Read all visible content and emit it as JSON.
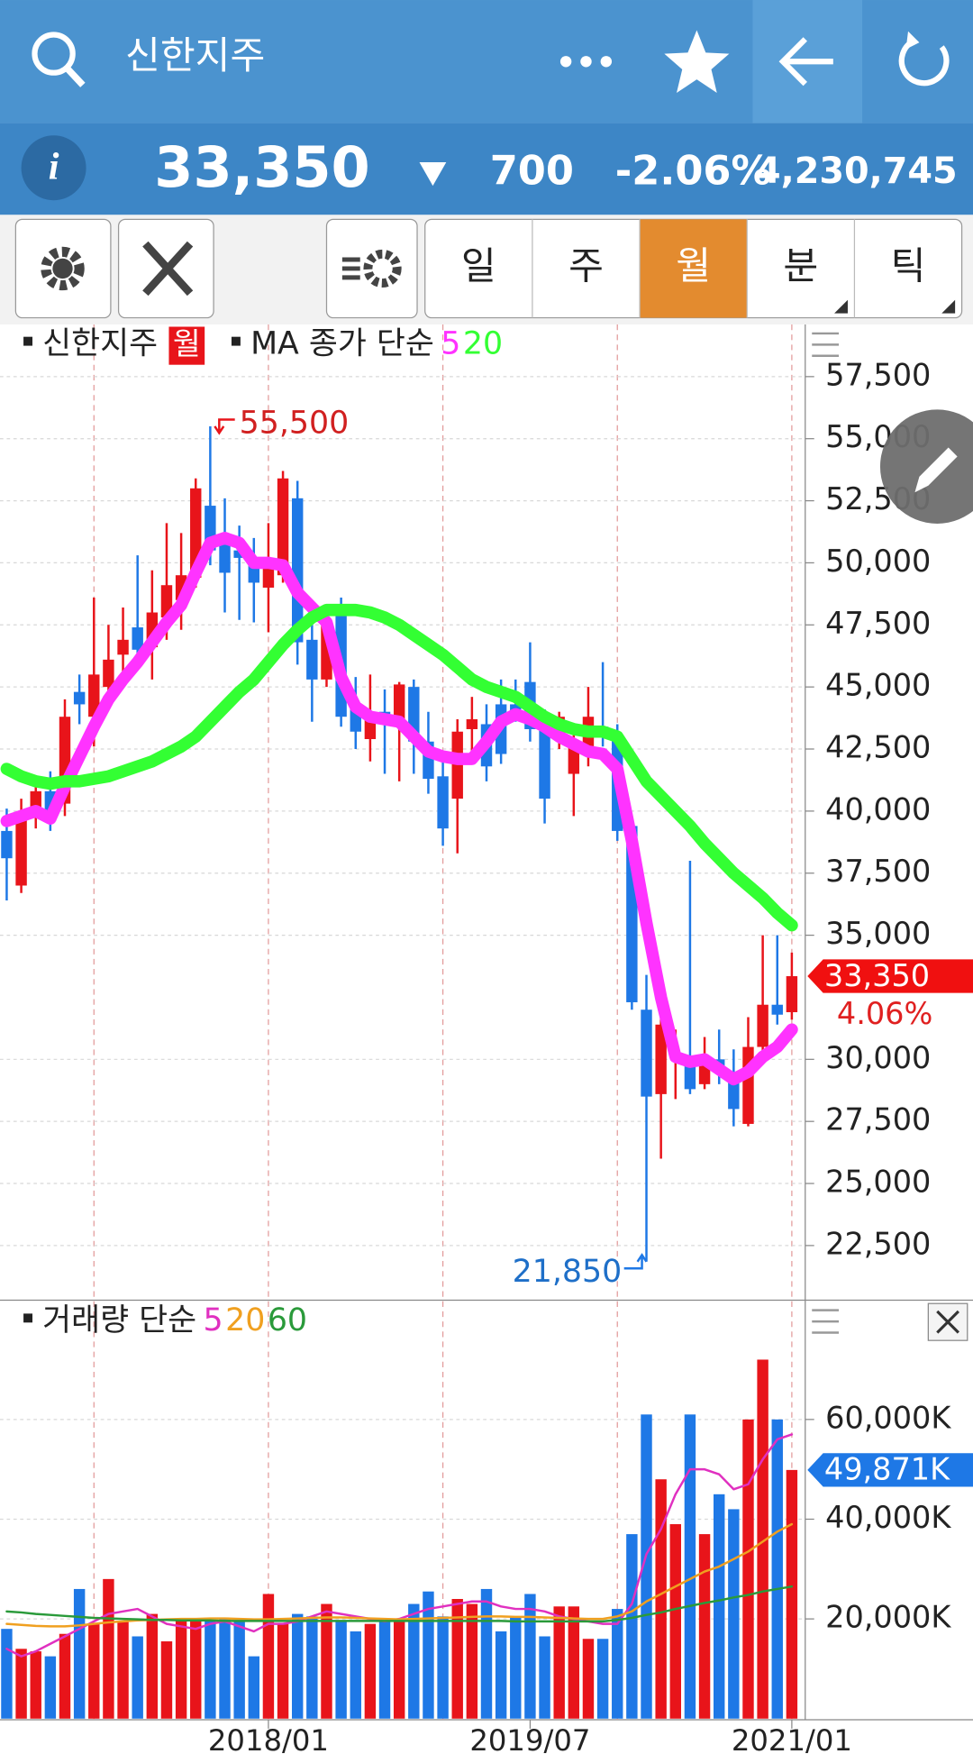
{
  "header": {
    "title": "신한지주",
    "price": "33,350",
    "change": "700",
    "change_rate": "-2.06%",
    "volume": "4,230,745"
  },
  "tabs": [
    "일",
    "주",
    "월",
    "분",
    "틱"
  ],
  "chart_data": [
    {
      "type": "candlestick",
      "title": "신한지주",
      "period": "월",
      "ma_label": "MA 종가 단순",
      "up_color": "#e8141a",
      "down_color": "#1e78e6",
      "open": [
        39200,
        37000,
        39800,
        40800,
        40300,
        44800,
        43800,
        45000,
        46300,
        47400,
        46600,
        47800,
        48500,
        49400,
        52300,
        51000,
        50500,
        50200,
        49000,
        49500,
        52600,
        46900,
        45300,
        48300,
        44100,
        42900,
        44000,
        43400,
        45000,
        42800,
        41400,
        40500,
        43300,
        43500,
        44300,
        44300,
        45200,
        43700,
        43000,
        41500,
        42300,
        43400,
        43000,
        39400,
        32000,
        28600,
        30000,
        30000,
        29000,
        30000,
        29500,
        27400,
        30500,
        32200,
        31900
      ],
      "high": [
        40100,
        40500,
        41300,
        41600,
        44500,
        45500,
        48600,
        47500,
        48200,
        50300,
        49700,
        51600,
        51200,
        53400,
        55500,
        52600,
        51500,
        51000,
        51600,
        53700,
        53300,
        47500,
        48000,
        48600,
        45400,
        45500,
        44900,
        45200,
        45300,
        44000,
        42300,
        43700,
        44600,
        44300,
        45300,
        45300,
        46800,
        44100,
        44000,
        43500,
        45000,
        46000,
        43500,
        39500,
        33400,
        32500,
        31200,
        38000,
        30900,
        31200,
        30400,
        31700,
        35000,
        35000,
        34300
      ],
      "low": [
        36400,
        36700,
        39300,
        39200,
        39800,
        43500,
        42600,
        44300,
        45400,
        45800,
        45300,
        46900,
        47300,
        49000,
        49900,
        48000,
        47700,
        47600,
        47200,
        49200,
        45900,
        43600,
        45000,
        43400,
        42500,
        42000,
        41500,
        41200,
        41500,
        40700,
        38600,
        38300,
        42400,
        41200,
        41900,
        43600,
        42800,
        39500,
        42500,
        39800,
        41800,
        42600,
        38800,
        32000,
        21850,
        26000,
        28400,
        28600,
        28800,
        29000,
        27300,
        27300,
        29800,
        31400,
        31600
      ],
      "close": [
        38100,
        39800,
        40800,
        39600,
        43800,
        44300,
        45500,
        46100,
        46900,
        46500,
        48000,
        49100,
        49500,
        53000,
        50500,
        49600,
        50200,
        49200,
        50100,
        53400,
        46800,
        45300,
        47600,
        43800,
        43200,
        43900,
        43500,
        45100,
        42800,
        41300,
        39300,
        43200,
        43700,
        41800,
        42300,
        44000,
        43300,
        40500,
        43800,
        42800,
        43800,
        43000,
        39200,
        32300,
        28500,
        31400,
        30200,
        28800,
        29800,
        29500,
        28000,
        30500,
        32200,
        31800,
        33350
      ],
      "series": [
        {
          "name": "5",
          "color": "#ff33ff",
          "values": [
            39600,
            39800,
            40000,
            39700,
            41000,
            42200,
            43400,
            44500,
            45300,
            46000,
            46800,
            47600,
            48300,
            49600,
            50800,
            51000,
            50800,
            50000,
            50000,
            49900,
            48800,
            48200,
            47600,
            45400,
            44200,
            43800,
            43700,
            43600,
            43000,
            42400,
            42200,
            42100,
            42100,
            42800,
            43600,
            43900,
            43700,
            43400,
            43000,
            42700,
            42400,
            42300,
            41700,
            38800,
            35500,
            32500,
            30100,
            29900,
            30000,
            29600,
            29200,
            29500,
            30100,
            30500,
            31200
          ]
        },
        {
          "name": "20",
          "color": "#33ff33",
          "values": [
            41700,
            41400,
            41200,
            41100,
            41200,
            41200,
            41300,
            41400,
            41600,
            41800,
            42000,
            42300,
            42600,
            43000,
            43600,
            44200,
            44800,
            45300,
            46000,
            46700,
            47300,
            47800,
            48100,
            48100,
            48100,
            48000,
            47800,
            47500,
            47100,
            46700,
            46300,
            45800,
            45300,
            45000,
            44800,
            44600,
            44200,
            43800,
            43500,
            43300,
            43200,
            43200,
            43000,
            42100,
            41200,
            40600,
            40000,
            39400,
            38700,
            38100,
            37500,
            37000,
            36500,
            35900,
            35400
          ]
        }
      ],
      "ylim": [
        20300,
        59600
      ],
      "yticks": [
        {
          "value": 22500,
          "label": "22,500"
        },
        {
          "value": 25000,
          "label": "25,000"
        },
        {
          "value": 27500,
          "label": "27,500"
        },
        {
          "value": 30000,
          "label": "30,000"
        },
        {
          "value": 35000,
          "label": "35,000"
        },
        {
          "value": 37500,
          "label": "37,500"
        },
        {
          "value": 40000,
          "label": "40,000"
        },
        {
          "value": 42500,
          "label": "42,500"
        },
        {
          "value": 45000,
          "label": "45,000"
        },
        {
          "value": 47500,
          "label": "47,500"
        },
        {
          "value": 50000,
          "label": "50,000"
        },
        {
          "value": 52500,
          "label": "52,500"
        },
        {
          "value": 55000,
          "label": "55,000"
        },
        {
          "value": 57500,
          "label": "57,500"
        }
      ],
      "max_label": {
        "value": 55500,
        "label": "55,500"
      },
      "min_label": {
        "value": 21850,
        "label": "21,850"
      },
      "last_label": {
        "value": 33350,
        "label": "33,350"
      },
      "last_rate": "4.06%",
      "grid": true
    },
    {
      "type": "bar",
      "title": "거래량 단순",
      "categories": [
        null,
        null,
        null,
        null,
        null,
        null,
        null,
        null,
        null,
        null,
        null,
        null,
        null,
        null,
        null,
        null,
        null,
        null,
        "2018/01",
        null,
        null,
        null,
        null,
        null,
        null,
        null,
        null,
        null,
        null,
        null,
        null,
        null,
        null,
        null,
        null,
        null,
        "2019/07",
        null,
        null,
        null,
        null,
        null,
        null,
        null,
        null,
        null,
        null,
        null,
        null,
        null,
        null,
        null,
        null,
        null,
        "2021/01"
      ],
      "values": [
        18000,
        14000,
        13500,
        12500,
        17000,
        26000,
        19000,
        28000,
        19500,
        16500,
        21000,
        15500,
        20000,
        20000,
        19500,
        20000,
        19500,
        12500,
        25000,
        19000,
        21000,
        20500,
        23000,
        19500,
        17500,
        19000,
        19500,
        19500,
        23000,
        25500,
        20500,
        24000,
        23000,
        26000,
        17500,
        20500,
        25000,
        16500,
        22500,
        22500,
        16000,
        16000,
        22000,
        37000,
        61000,
        48000,
        39000,
        61000,
        37000,
        45000,
        42000,
        60000,
        72000,
        60000,
        49871
      ],
      "series": [
        {
          "name": "5",
          "color": "#e030c0",
          "values": [
            14000,
            12500,
            13500,
            15000,
            16500,
            18000,
            19500,
            21000,
            21500,
            22000,
            20500,
            19000,
            18500,
            18000,
            19000,
            19500,
            18500,
            17500,
            19000,
            19000,
            19500,
            20500,
            21500,
            21000,
            20500,
            20000,
            19500,
            20000,
            21000,
            22000,
            22500,
            23000,
            23500,
            23500,
            22500,
            22000,
            22000,
            21500,
            20500,
            20000,
            19500,
            19000,
            19000,
            23000,
            33000,
            38000,
            45000,
            50000,
            50000,
            49000,
            46000,
            47000,
            52000,
            56000,
            57000
          ]
        },
        {
          "name": "20",
          "color": "#f0a020",
          "values": [
            19000,
            18800,
            18600,
            18500,
            18500,
            18700,
            19000,
            19300,
            19500,
            19700,
            19800,
            19900,
            20000,
            20000,
            20100,
            20100,
            20000,
            19900,
            19900,
            20000,
            20100,
            20200,
            20300,
            20300,
            20200,
            20100,
            20000,
            19900,
            20000,
            20100,
            20200,
            20300,
            20400,
            20500,
            20500,
            20400,
            20400,
            20300,
            20200,
            20100,
            20000,
            20000,
            20500,
            21500,
            23500,
            25000,
            26500,
            28000,
            29500,
            30500,
            32000,
            33500,
            35500,
            37500,
            39000
          ]
        },
        {
          "name": "60",
          "color": "#2a9a3a",
          "values": [
            21500,
            21300,
            21000,
            20800,
            20600,
            20400,
            20200,
            20100,
            20000,
            19900,
            19800,
            19800,
            19700,
            19700,
            19700,
            19600,
            19600,
            19600,
            19600,
            19600,
            19600,
            19600,
            19600,
            19600,
            19600,
            19600,
            19600,
            19600,
            19600,
            19600,
            19600,
            19600,
            19600,
            19600,
            19600,
            19500,
            19500,
            19500,
            19500,
            19500,
            19500,
            19500,
            19800,
            20200,
            20800,
            21300,
            22000,
            22600,
            23200,
            23700,
            24300,
            24800,
            25500,
            26000,
            26500
          ]
        }
      ],
      "ylim": [
        0,
        83700
      ],
      "yticks": [
        {
          "value": 20000,
          "label": "20,000K"
        },
        {
          "value": 40000,
          "label": "40,000K"
        },
        {
          "value": 60000,
          "label": "60,000K"
        }
      ],
      "last_label": {
        "value": 49871,
        "label": "49,871K"
      },
      "grid": true
    }
  ]
}
